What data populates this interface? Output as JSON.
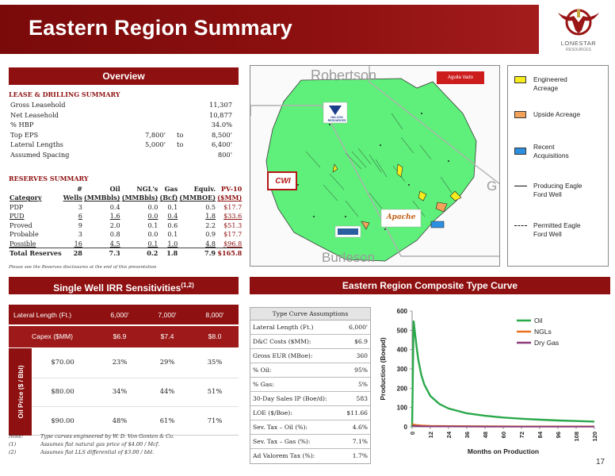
{
  "header": {
    "title": "Eastern Region Summary"
  },
  "logo": {
    "name": "LONESTAR",
    "sub": "RESOURCES"
  },
  "overview": {
    "title": "Overview",
    "lease_title": "LEASE & DRILLING SUMMARY",
    "lease_rows": [
      {
        "label": "Gross Leasehold",
        "v1": "",
        "to": "",
        "v2": "11,307"
      },
      {
        "label": "Net Leasehold",
        "v1": "",
        "to": "",
        "v2": "10,877"
      },
      {
        "label": "% HBP",
        "v1": "",
        "to": "",
        "v2": "34.0%"
      },
      {
        "label": "Top EPS",
        "v1": "7,800'",
        "to": "to",
        "v2": "8,500'"
      },
      {
        "label": "Lateral Lengths",
        "v1": "5,000'",
        "to": "to",
        "v2": "6,400'"
      },
      {
        "label": "Assumed Spacing",
        "v1": "",
        "to": "",
        "v2": "800'"
      }
    ],
    "reserves_title": "RESERVES SUMMARY",
    "res_head1": [
      "",
      "#",
      "Oil",
      "NGL's",
      "Gas",
      "Equiv.",
      "PV-10"
    ],
    "res_head2": [
      "Category",
      "Wells",
      "(MMBbls)",
      "(MMBbls)",
      "(Bcf)",
      "(MMBOE)",
      "($MM)"
    ],
    "res_rows": [
      [
        "PDP",
        "3",
        "0.4",
        "0.0",
        "0.1",
        "0.5",
        "$17.7"
      ],
      [
        "PUD",
        "6",
        "1.6",
        "0.0",
        "0.4",
        "1.8",
        "$33.6"
      ],
      [
        "Proved",
        "9",
        "2.0",
        "0.1",
        "0.6",
        "2.2",
        "$51.3"
      ],
      [
        "Probable",
        "3",
        "0.8",
        "0.0",
        "0.1",
        "0.9",
        "$17.7"
      ],
      [
        "Possible",
        "16",
        "4.5",
        "0.1",
        "1.0",
        "4.8",
        "$96.8"
      ]
    ],
    "res_total": [
      "Total Reserves",
      "28",
      "7.3",
      "0.2",
      "1.8",
      "7.9",
      "$165.8"
    ],
    "disclaimer": "Please see the Reserves disclosures at the end of this presentation"
  },
  "map": {
    "counties": [
      "Robertson",
      "Burleson",
      "G",
      "l"
    ],
    "aguila_label": "Aguila Vado",
    "cwi_label": "CWI",
    "apache_label": "Apache",
    "halcon_label": "HALCÓN RESOURCES",
    "halcon_label2": "RESOURCES"
  },
  "legend": {
    "items": [
      {
        "label1": "Engineered",
        "label2": "Acreage",
        "color": "#f6ec1e"
      },
      {
        "label1": "Upside Acreage",
        "label2": "",
        "color": "#f3a25a"
      },
      {
        "label1": "Recent",
        "label2": "Acquisitions",
        "color": "#2d8fe0"
      },
      {
        "label1": "Producing Eagle",
        "label2": "Ford Well",
        "color": ""
      },
      {
        "label1": "Permitted Eagle",
        "label2": "Ford Well",
        "color": ""
      }
    ]
  },
  "irr": {
    "title": "Single Well IRR Sensitivities",
    "title_sup": "(1,2)",
    "row1_label": "Lateral Length (Ft.)",
    "row2_label": "Capex ($MM)",
    "lengths": [
      "6,000'",
      "7,000'",
      "8,000'"
    ],
    "capex": [
      "$6.9",
      "$7.4",
      "$8.0"
    ],
    "side_label": "Oil Price ($ / Bbl)",
    "prices": [
      "$70.00",
      "$80.00",
      "$90.00"
    ],
    "values": [
      [
        "23%",
        "29%",
        "35%"
      ],
      [
        "34%",
        "44%",
        "51%"
      ],
      [
        "48%",
        "61%",
        "71%"
      ]
    ]
  },
  "notes": [
    {
      "key": "Note:",
      "text": "Type curves engineered by W. D. Von Gonten & Co."
    },
    {
      "key": "(1)",
      "text": "Assumes flat natural gas price of $4.00 / Mcf."
    },
    {
      "key": "(2)",
      "text": "Assumes flat LLS differential of $3.00 / bbl."
    }
  ],
  "type_curve": {
    "title": "Eastern Region Composite Type Curve",
    "table_title": "Type Curve Assumptions",
    "rows": [
      {
        "label": "Lateral Length (Ft.)",
        "value": "6,000'"
      },
      {
        "label": "D&C Costs ($MM):",
        "value": "$6.9"
      },
      {
        "label": "Gross EUR (MBoe):",
        "value": "360"
      },
      {
        "label": "% Oil:",
        "value": "95%"
      },
      {
        "label": "% Gas:",
        "value": "5%"
      },
      {
        "label": "30-Day Sales IP (Boe/d):",
        "value": "583"
      },
      {
        "label": "LOE ($/Boe):",
        "value": "$11.66"
      },
      {
        "label": "Sev. Tax – Oil (%):",
        "value": "4.6%"
      },
      {
        "label": "Sev. Tax – Gas (%):",
        "value": "7.1%"
      },
      {
        "label": "Ad Valorem Tax (%):",
        "value": "1.7%"
      }
    ]
  },
  "chart_data": {
    "type": "line",
    "title": "",
    "xlabel": "Months on Production",
    "ylabel": "Production (Boepd)",
    "xlim": [
      0,
      120
    ],
    "ylim": [
      0,
      600
    ],
    "xticks": [
      0,
      12,
      24,
      36,
      48,
      60,
      72,
      84,
      96,
      108,
      120
    ],
    "yticks": [
      0,
      100,
      200,
      300,
      400,
      500,
      600
    ],
    "legend_position": "top-right",
    "grid": false,
    "series": [
      {
        "name": "Oil",
        "color": "#2aa84a",
        "x": [
          0,
          1,
          2,
          3,
          4,
          6,
          8,
          12,
          18,
          24,
          36,
          48,
          60,
          72,
          84,
          96,
          108,
          120
        ],
        "y": [
          0,
          550,
          480,
          410,
          350,
          270,
          220,
          160,
          118,
          95,
          70,
          57,
          48,
          42,
          37,
          33,
          30,
          27
        ]
      },
      {
        "name": "NGLs",
        "color": "#e8701e",
        "x": [
          0,
          1,
          3,
          6,
          12,
          24,
          48,
          72,
          96,
          120
        ],
        "y": [
          15,
          12,
          9,
          7,
          5,
          4,
          3,
          2,
          2,
          2
        ]
      },
      {
        "name": "Dry Gas",
        "color": "#8a3a78",
        "x": [
          0,
          1,
          3,
          6,
          12,
          24,
          48,
          72,
          96,
          120
        ],
        "y": [
          6,
          5,
          4,
          3,
          2,
          2,
          1,
          1,
          1,
          1
        ]
      }
    ]
  },
  "page_number": "17"
}
